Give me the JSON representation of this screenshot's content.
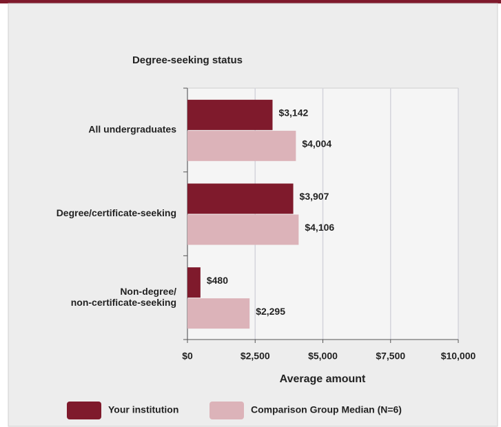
{
  "chart_data": {
    "type": "bar",
    "orientation": "horizontal",
    "y_axis_title": "Degree-seeking status",
    "x_axis_title": "Average amount",
    "categories": [
      "All undergraduates",
      "Degree/certificate-seeking",
      "Non-degree/\nnon-certificate-seeking"
    ],
    "series": [
      {
        "name": "Your institution",
        "color": "#7f1a2c",
        "values": [
          3142,
          3907,
          480
        ],
        "value_labels": [
          "$3,142",
          "$3,907",
          "$480"
        ]
      },
      {
        "name": "Comparison Group Median (N=6)",
        "color": "#dcb3b9",
        "values": [
          4004,
          4106,
          2295
        ],
        "value_labels": [
          "$4,004",
          "$4,106",
          "$2,295"
        ]
      }
    ],
    "xlim": [
      0,
      10000
    ],
    "xticks": [
      {
        "value": 0,
        "label": "$0"
      },
      {
        "value": 2500,
        "label": "$2,500"
      },
      {
        "value": 5000,
        "label": "$5,000"
      },
      {
        "value": 7500,
        "label": "$7,500"
      },
      {
        "value": 10000,
        "label": "$10,000"
      }
    ],
    "grid": true
  }
}
